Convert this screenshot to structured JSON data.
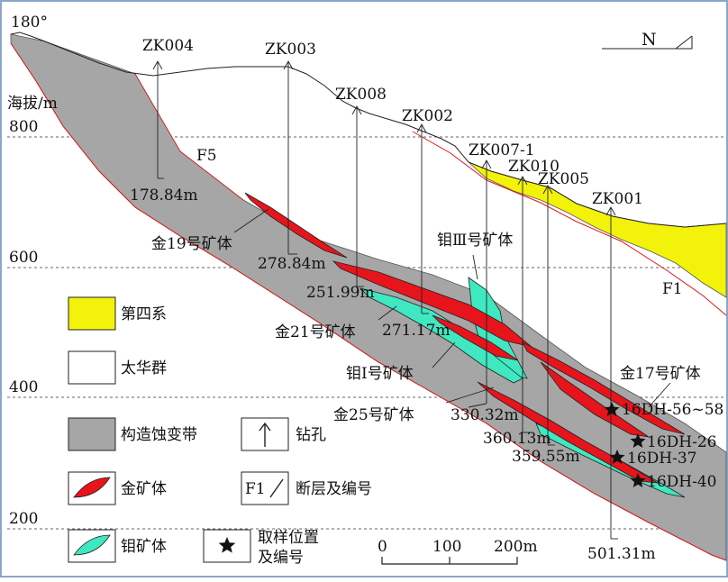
{
  "orientation_label": "180°",
  "north_label": "N",
  "elevation": {
    "unit_label": "海拔/m",
    "ticks": [
      "800",
      "600",
      "400",
      "200"
    ]
  },
  "drillholes": [
    {
      "id": "ZK004",
      "depth": "178.84m"
    },
    {
      "id": "ZK003",
      "depth": "278.84m"
    },
    {
      "id": "ZK008",
      "depth": "251.99m"
    },
    {
      "id": "ZK002",
      "depth": "271.17m"
    },
    {
      "id": "ZK007-1",
      "depth": "330.32m"
    },
    {
      "id": "ZK010",
      "depth": "360.13m"
    },
    {
      "id": "ZK005",
      "depth": "359.55m"
    },
    {
      "id": "ZK001",
      "depth": "501.31m"
    }
  ],
  "faults": {
    "f5": "F5",
    "f1": "F1"
  },
  "orebodies": {
    "gold19": "金19号矿体",
    "gold21": "金21号矿体",
    "gold25": "金25号矿体",
    "gold17": "金17号矿体",
    "mo3": "钼Ⅲ号矿体",
    "mo1": "钼Ⅰ号矿体"
  },
  "samples": [
    "16DH-56~58",
    "16DH-26",
    "16DH-37",
    "16DH-40"
  ],
  "legend": {
    "quaternary": "第四系",
    "taihua": "太华群",
    "alteration": "构造蚀变带",
    "drillhole": "钻孔",
    "gold_body": "金矿体",
    "fault": "断层及编号",
    "fault_code": "F1",
    "mo_body": "钼矿体",
    "sample_line1": "取样位置",
    "sample_line2": "及编号"
  },
  "scale_bar": {
    "labels": [
      "0",
      "100",
      "200m"
    ]
  },
  "colors": {
    "quaternary": "#f2f20a",
    "alteration": "#a6a6a6",
    "gold": "#e8141c",
    "molybdenum": "#3fe8c0",
    "fault_line": "#e01818"
  }
}
